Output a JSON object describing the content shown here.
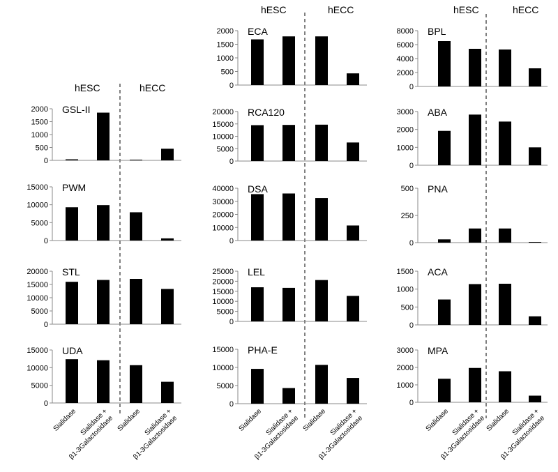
{
  "figure": {
    "group_labels": [
      "hESC",
      "hECC"
    ],
    "category_labels": [
      "Sialidase",
      "Sialidase +",
      "β1-3Galactosidase"
    ]
  },
  "chart_data": [
    {
      "type": "bar",
      "title": "GSL-II",
      "categories": [
        "hESC Sialidase",
        "hESC Sialidase + β1-3Galactosidase",
        "hECC Sialidase",
        "hECC Sialidase + β1-3Galactosidase"
      ],
      "values": [
        40,
        1850,
        10,
        450
      ],
      "ylim": [
        0,
        2000
      ],
      "yticks": [
        0,
        500,
        1000,
        1500,
        2000
      ]
    },
    {
      "type": "bar",
      "title": "PWM",
      "categories": [
        "hESC Sialidase",
        "hESC Sialidase + β1-3Galactosidase",
        "hECC Sialidase",
        "hECC Sialidase + β1-3Galactosidase"
      ],
      "values": [
        9300,
        9900,
        7900,
        600
      ],
      "ylim": [
        0,
        15000
      ],
      "yticks": [
        0,
        5000,
        10000,
        15000
      ]
    },
    {
      "type": "bar",
      "title": "STL",
      "categories": [
        "hESC Sialidase",
        "hESC Sialidase + β1-3Galactosidase",
        "hECC Sialidase",
        "hECC Sialidase + β1-3Galactosidase"
      ],
      "values": [
        16000,
        16700,
        17100,
        13300
      ],
      "ylim": [
        0,
        20000
      ],
      "yticks": [
        0,
        5000,
        10000,
        15000,
        20000
      ]
    },
    {
      "type": "bar",
      "title": "UDA",
      "categories": [
        "hESC Sialidase",
        "hESC Sialidase + β1-3Galactosidase",
        "hECC Sialidase",
        "hECC Sialidase + β1-3Galactosidase"
      ],
      "values": [
        12400,
        12100,
        10700,
        6000
      ],
      "ylim": [
        0,
        15000
      ],
      "yticks": [
        0,
        5000,
        10000,
        15000
      ]
    },
    {
      "type": "bar",
      "title": "ECA",
      "categories": [
        "hESC Sialidase",
        "hESC Sialidase + β1-3Galactosidase",
        "hECC Sialidase",
        "hECC Sialidase + β1-3Galactosidase"
      ],
      "values": [
        1680,
        1790,
        1790,
        430
      ],
      "ylim": [
        0,
        2000
      ],
      "yticks": [
        0,
        500,
        1000,
        1500,
        2000
      ]
    },
    {
      "type": "bar",
      "title": "RCA120",
      "categories": [
        "hESC Sialidase",
        "hESC Sialidase + β1-3Galactosidase",
        "hECC Sialidase",
        "hECC Sialidase + β1-3Galactosidase"
      ],
      "values": [
        14500,
        14600,
        14700,
        7500
      ],
      "ylim": [
        0,
        20000
      ],
      "yticks": [
        0,
        5000,
        10000,
        15000,
        20000
      ]
    },
    {
      "type": "bar",
      "title": "DSA",
      "categories": [
        "hESC Sialidase",
        "hESC Sialidase + β1-3Galactosidase",
        "hECC Sialidase",
        "hECC Sialidase + β1-3Galactosidase"
      ],
      "values": [
        35500,
        36000,
        32500,
        11500
      ],
      "ylim": [
        0,
        40000
      ],
      "yticks": [
        0,
        10000,
        20000,
        30000,
        40000
      ]
    },
    {
      "type": "bar",
      "title": "LEL",
      "categories": [
        "hESC Sialidase",
        "hESC Sialidase + β1-3Galactosidase",
        "hECC Sialidase",
        "hECC Sialidase + β1-3Galactosidase"
      ],
      "values": [
        17000,
        16700,
        20600,
        12700
      ],
      "ylim": [
        0,
        25000
      ],
      "yticks": [
        0,
        5000,
        10000,
        15000,
        20000,
        25000
      ]
    },
    {
      "type": "bar",
      "title": "PHA-E",
      "categories": [
        "hESC Sialidase",
        "hESC Sialidase + β1-3Galactosidase",
        "hECC Sialidase",
        "hECC Sialidase + β1-3Galactosidase"
      ],
      "values": [
        9600,
        4300,
        10700,
        7100
      ],
      "ylim": [
        0,
        15000
      ],
      "yticks": [
        0,
        5000,
        10000,
        15000
      ]
    },
    {
      "type": "bar",
      "title": "BPL",
      "categories": [
        "hESC Sialidase",
        "hESC Sialidase + β1-3Galactosidase",
        "hECC Sialidase",
        "hECC Sialidase + β1-3Galactosidase"
      ],
      "values": [
        6500,
        5400,
        5300,
        2600
      ],
      "ylim": [
        0,
        8000
      ],
      "yticks": [
        0,
        2000,
        4000,
        6000,
        8000
      ]
    },
    {
      "type": "bar",
      "title": "ABA",
      "categories": [
        "hESC Sialidase",
        "hESC Sialidase + β1-3Galactosidase",
        "hECC Sialidase",
        "hECC Sialidase + β1-3Galactosidase"
      ],
      "values": [
        1920,
        2830,
        2440,
        1000
      ],
      "ylim": [
        0,
        3000
      ],
      "yticks": [
        0,
        1000,
        2000,
        3000
      ]
    },
    {
      "type": "bar",
      "title": "PNA",
      "categories": [
        "hESC Sialidase",
        "hESC Sialidase + β1-3Galactosidase",
        "hECC Sialidase",
        "hECC Sialidase + β1-3Galactosidase"
      ],
      "values": [
        30,
        130,
        130,
        5
      ],
      "ylim": [
        0,
        500
      ],
      "yticks": [
        0,
        250,
        500
      ]
    },
    {
      "type": "bar",
      "title": "ACA",
      "categories": [
        "hESC Sialidase",
        "hESC Sialidase + β1-3Galactosidase",
        "hECC Sialidase",
        "hECC Sialidase + β1-3Galactosidase"
      ],
      "values": [
        710,
        1140,
        1150,
        240
      ],
      "ylim": [
        0,
        1500
      ],
      "yticks": [
        0,
        500,
        1000,
        1500
      ]
    },
    {
      "type": "bar",
      "title": "MPA",
      "categories": [
        "hESC Sialidase",
        "hESC Sialidase + β1-3Galactosidase",
        "hECC Sialidase",
        "hECC Sialidase + β1-3Galactosidase"
      ],
      "values": [
        1350,
        1970,
        1780,
        380
      ],
      "ylim": [
        0,
        3000
      ],
      "yticks": [
        0,
        1000,
        2000,
        3000
      ]
    }
  ]
}
